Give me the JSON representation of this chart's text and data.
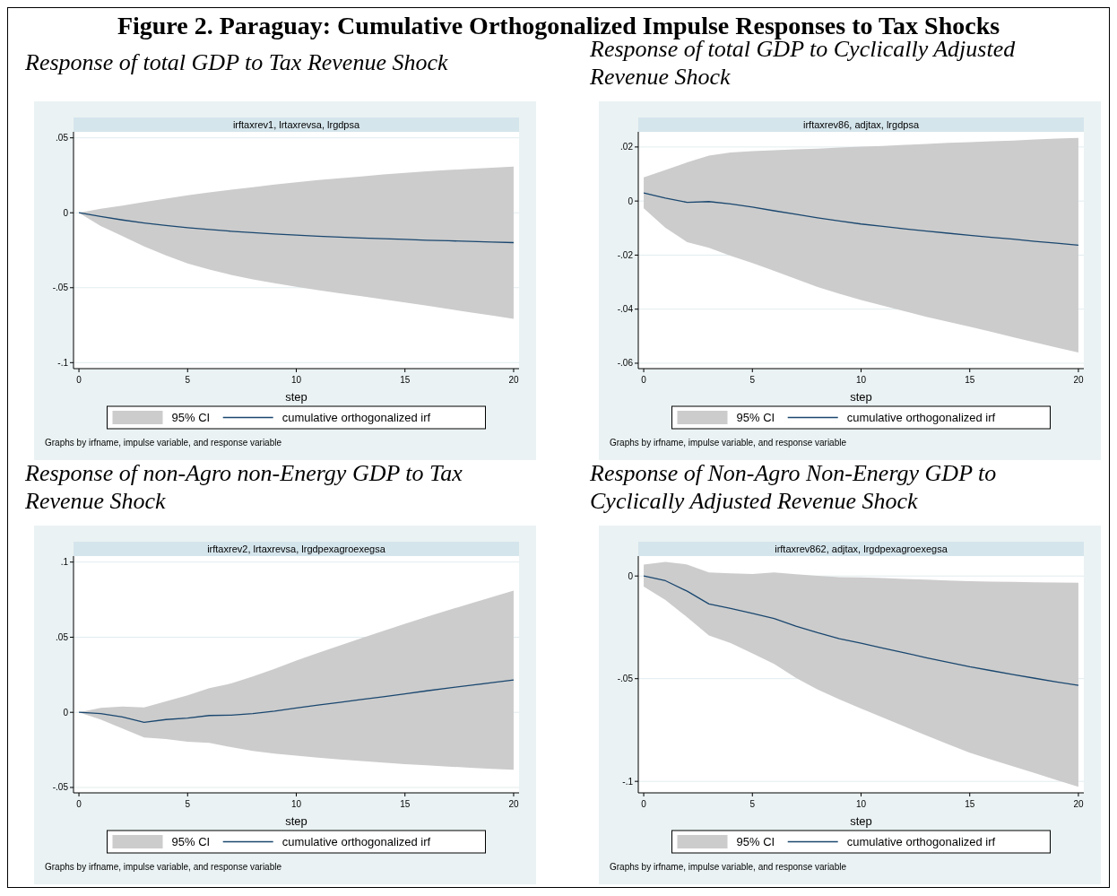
{
  "chart_data": [
    {
      "type": "other",
      "title": "Figure 2. Paraguay: Cumulative Orthogonalized Impulse Responses to Tax Shocks"
    },
    {
      "type": "line",
      "title": "Response of total GDP to Tax Revenue Shock",
      "subtitle": "irftaxrev1, lrtaxrevsa, lrgdpsa",
      "xlabel": "step",
      "annotations": [
        "95% CI",
        "Graphs by irfname, impulse variable, and response variable"
      ],
      "x": [
        0,
        1,
        2,
        3,
        4,
        5,
        6,
        7,
        8,
        9,
        10,
        11,
        12,
        13,
        14,
        15,
        16,
        17,
        18,
        19,
        20
      ],
      "xlim": [
        -0.25,
        20.25
      ],
      "xticks": [
        0,
        5,
        10,
        15,
        20
      ],
      "ylim": [
        -0.104,
        0.054
      ],
      "yticks": [
        {
          "value": 0.05,
          "label": ".05"
        },
        {
          "value": 0,
          "label": "0"
        },
        {
          "value": -0.05,
          "label": "-.05"
        },
        {
          "value": -0.1,
          "label": "-.1"
        }
      ],
      "grid": "y",
      "legend": "bottom",
      "series": [
        {
          "type": "line",
          "name": "cumulative orthogonalized irf",
          "color": "#1a476f",
          "lower": [
            0,
            -0.0088,
            -0.0155,
            -0.0225,
            -0.0285,
            -0.0338,
            -0.0378,
            -0.0414,
            -0.0445,
            -0.047,
            -0.0494,
            -0.0516,
            -0.0537,
            -0.0556,
            -0.0577,
            -0.0598,
            -0.062,
            -0.0642,
            -0.0664,
            -0.0686,
            -0.0708
          ],
          "upper": [
            0,
            0.0027,
            0.0048,
            0.0072,
            0.0094,
            0.0117,
            0.0136,
            0.0154,
            0.0171,
            0.0188,
            0.0204,
            0.0218,
            0.0231,
            0.0243,
            0.0255,
            0.0266,
            0.0276,
            0.0285,
            0.0293,
            0.0301,
            0.0308
          ],
          "values": [
            0,
            -0.0025,
            -0.0048,
            -0.0068,
            -0.0085,
            -0.01,
            -0.0112,
            -0.0123,
            -0.0132,
            -0.0141,
            -0.0149,
            -0.0156,
            -0.0162,
            -0.0168,
            -0.0173,
            -0.0178,
            -0.0183,
            -0.0187,
            -0.0191,
            -0.0195,
            -0.0199
          ]
        }
      ]
    },
    {
      "type": "line",
      "title": "Response of total GDP to Cyclically Adjusted Revenue Shock",
      "subtitle": "irftaxrev86, adjtax, lrgdpsa",
      "xlabel": "step",
      "annotations": [
        "95% CI",
        "Graphs by irfname, impulse variable, and response variable"
      ],
      "x": [
        0,
        1,
        2,
        3,
        4,
        5,
        6,
        7,
        8,
        9,
        10,
        11,
        12,
        13,
        14,
        15,
        16,
        17,
        18,
        19,
        20
      ],
      "xlim": [
        -0.25,
        20.25
      ],
      "xticks": [
        0,
        5,
        10,
        15,
        20
      ],
      "ylim": [
        -0.062,
        0.0256
      ],
      "yticks": [
        {
          "value": 0.02,
          "label": ".02"
        },
        {
          "value": 0,
          "label": "0"
        },
        {
          "value": -0.02,
          "label": "-.02"
        },
        {
          "value": -0.04,
          "label": "-.04"
        },
        {
          "value": -0.06,
          "label": "-.06"
        }
      ],
      "grid": "y",
      "legend": "bottom",
      "series": [
        {
          "type": "line",
          "name": "cumulative orthogonalized irf",
          "color": "#1a476f",
          "lower": [
            -0.0027,
            -0.0099,
            -0.0152,
            -0.0173,
            -0.0203,
            -0.0229,
            -0.0258,
            -0.0288,
            -0.0318,
            -0.0343,
            -0.0366,
            -0.0387,
            -0.0408,
            -0.0428,
            -0.0447,
            -0.0465,
            -0.0484,
            -0.0504,
            -0.0523,
            -0.0542,
            -0.056
          ],
          "upper": [
            0.0088,
            0.0115,
            0.0143,
            0.0168,
            0.018,
            0.0185,
            0.0188,
            0.0191,
            0.0194,
            0.0198,
            0.0201,
            0.0204,
            0.0208,
            0.0211,
            0.0215,
            0.0218,
            0.0221,
            0.0224,
            0.0228,
            0.0231,
            0.0234
          ],
          "values": [
            0.003,
            0.0011,
            -0.0005,
            -0.0002,
            -0.0011,
            -0.0022,
            -0.0036,
            -0.0049,
            -0.0062,
            -0.0074,
            -0.0085,
            -0.0094,
            -0.0103,
            -0.0111,
            -0.0119,
            -0.0127,
            -0.0134,
            -0.0141,
            -0.0149,
            -0.0156,
            -0.0163
          ]
        }
      ]
    },
    {
      "type": "line",
      "title": "Response of non-Agro non-Energy GDP to Tax Revenue Shock",
      "subtitle": "irftaxrev2, lrtaxrevsa, lrgdpexagroexegsa",
      "xlabel": "step",
      "annotations": [
        "95% CI",
        "Graphs by irfname, impulse variable, and response variable"
      ],
      "x": [
        0,
        1,
        2,
        3,
        4,
        5,
        6,
        7,
        8,
        9,
        10,
        11,
        12,
        13,
        14,
        15,
        16,
        17,
        18,
        19,
        20
      ],
      "xlim": [
        -0.25,
        20.25
      ],
      "xticks": [
        0,
        5,
        10,
        15,
        20
      ],
      "ylim": [
        -0.0536,
        0.104
      ],
      "yticks": [
        {
          "value": 0.1,
          "label": ".1"
        },
        {
          "value": 0.05,
          "label": ".05"
        },
        {
          "value": 0,
          "label": "0"
        },
        {
          "value": -0.05,
          "label": "-.05"
        }
      ],
      "grid": "y",
      "legend": "bottom",
      "series": [
        {
          "type": "line",
          "name": "cumulative orthogonalized irf",
          "color": "#1a476f",
          "lower": [
            0,
            -0.0048,
            -0.0107,
            -0.0167,
            -0.0178,
            -0.0195,
            -0.0203,
            -0.0232,
            -0.0257,
            -0.0275,
            -0.0289,
            -0.0301,
            -0.0313,
            -0.0324,
            -0.0335,
            -0.0345,
            -0.0353,
            -0.0361,
            -0.0369,
            -0.0376,
            -0.0383
          ],
          "upper": [
            0,
            0.0029,
            0.0038,
            0.0033,
            0.0073,
            0.0113,
            0.0161,
            0.0192,
            0.0239,
            0.029,
            0.0345,
            0.0395,
            0.0445,
            0.0494,
            0.0542,
            0.059,
            0.0636,
            0.068,
            0.0724,
            0.0767,
            0.081
          ],
          "values": [
            0,
            -0.0008,
            -0.0031,
            -0.0067,
            -0.0048,
            -0.0038,
            -0.0021,
            -0.0019,
            -0.0008,
            0.0008,
            0.0029,
            0.0048,
            0.0066,
            0.0085,
            0.0104,
            0.0123,
            0.0143,
            0.0162,
            0.0179,
            0.0197,
            0.0215
          ]
        }
      ]
    },
    {
      "type": "line",
      "title": "Response of Non-Agro Non-Energy GDP to Cyclically Adjusted Revenue Shock",
      "subtitle": "irftaxrev862, adjtax, lrgdpexagroexegsa",
      "xlabel": "step",
      "annotations": [
        "95% CI",
        "Graphs by irfname, impulse variable, and response variable"
      ],
      "x": [
        0,
        1,
        2,
        3,
        4,
        5,
        6,
        7,
        8,
        9,
        10,
        11,
        12,
        13,
        14,
        15,
        16,
        17,
        18,
        19,
        20
      ],
      "xlim": [
        -0.25,
        20.25
      ],
      "xticks": [
        0,
        5,
        10,
        15,
        20
      ],
      "ylim": [
        -0.1056,
        0.0097
      ],
      "yticks": [
        {
          "value": 0,
          "label": "0"
        },
        {
          "value": -0.05,
          "label": "-.05"
        },
        {
          "value": -0.1,
          "label": "-.1"
        }
      ],
      "grid": "y",
      "legend": "bottom",
      "series": [
        {
          "type": "line",
          "name": "cumulative orthogonalized irf",
          "color": "#1a476f",
          "lower": [
            -0.0052,
            -0.0117,
            -0.0201,
            -0.029,
            -0.0327,
            -0.0377,
            -0.0428,
            -0.0496,
            -0.0553,
            -0.0601,
            -0.0645,
            -0.0689,
            -0.0733,
            -0.0777,
            -0.0819,
            -0.0861,
            -0.0894,
            -0.0927,
            -0.096,
            -0.0994,
            -0.1027
          ],
          "upper": [
            0.0056,
            0.0069,
            0.0056,
            0.0017,
            0.0013,
            0.001,
            0.0017,
            0.0009,
            0.0001,
            -0.0006,
            -0.0007,
            -0.001,
            -0.0014,
            -0.0018,
            -0.0022,
            -0.0025,
            -0.0027,
            -0.0029,
            -0.0031,
            -0.0032,
            -0.0033
          ],
          "values": [
            0,
            -0.0023,
            -0.0074,
            -0.0136,
            -0.0158,
            -0.0182,
            -0.0207,
            -0.0244,
            -0.0276,
            -0.0305,
            -0.0327,
            -0.0351,
            -0.0374,
            -0.0398,
            -0.042,
            -0.0442,
            -0.0461,
            -0.048,
            -0.0498,
            -0.0516,
            -0.0532
          ]
        }
      ]
    }
  ]
}
